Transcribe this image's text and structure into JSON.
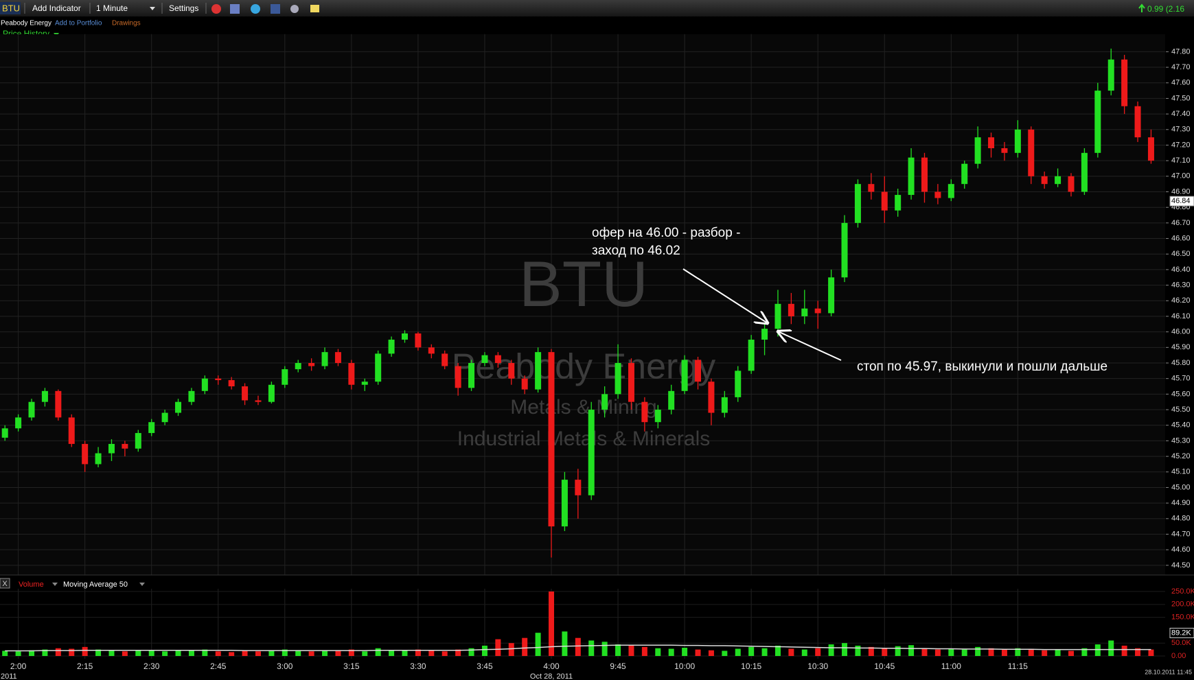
{
  "toolbar": {
    "symbol": "BTU",
    "add_indicator": "Add Indicator",
    "interval": "1 Minute",
    "settings": "Settings",
    "change": "0.99 (2.16",
    "company": "Peabody Energy",
    "add_to_portfolio": "Add to Portfolio",
    "drawings": "Drawings",
    "price_history": "Price History"
  },
  "chart_data": {
    "type": "candlestick",
    "watermark": [
      "BTU",
      "Peabody Energy",
      "Metals & Mining",
      "Industrial Metals & Minerals"
    ],
    "categories": [
      null,
      "2:00",
      null,
      null,
      null,
      null,
      "2:15",
      null,
      null,
      null,
      null,
      "2:30",
      null,
      null,
      null,
      null,
      "2:45",
      null,
      null,
      null,
      null,
      "3:00",
      null,
      null,
      null,
      null,
      "3:15",
      null,
      null,
      null,
      null,
      "3:30",
      null,
      null,
      null,
      null,
      "3:45",
      null,
      null,
      null,
      null,
      "4:00",
      null,
      null,
      null,
      null,
      "9:45",
      null,
      null,
      null,
      null,
      "10:00",
      null,
      null,
      null,
      null,
      "10:15",
      null,
      null,
      null,
      null,
      "10:30",
      null,
      null,
      null,
      null,
      "10:45",
      null,
      null,
      null,
      null,
      "11:00",
      null,
      null,
      null,
      null,
      "11:15",
      null,
      null,
      null,
      null,
      null,
      null,
      null,
      null,
      null,
      null
    ],
    "year_label": "2011",
    "date_label": "Oct 28, 2011",
    "open": [
      45.32,
      45.38,
      45.45,
      45.55,
      45.62,
      45.45,
      45.28,
      45.15,
      45.22,
      45.28,
      45.25,
      45.35,
      45.42,
      45.48,
      45.55,
      45.62,
      45.7,
      45.69,
      45.65,
      45.56,
      45.55,
      45.66,
      45.76,
      45.8,
      45.78,
      45.87,
      45.8,
      45.66,
      45.68,
      45.86,
      45.95,
      45.99,
      45.9,
      45.86,
      45.78,
      45.64,
      45.8,
      45.85,
      45.8,
      45.7,
      45.63,
      45.87,
      44.75,
      45.05,
      44.95,
      45.5,
      45.6,
      45.8,
      45.55,
      45.42,
      45.5,
      45.62,
      45.82,
      45.68,
      45.48,
      45.58,
      45.75,
      45.95,
      46.02,
      46.18,
      46.1,
      46.15,
      46.12,
      46.35,
      46.7,
      46.95,
      46.9,
      46.78,
      46.88,
      47.12,
      46.9,
      46.86,
      46.95,
      47.08,
      47.25,
      47.18,
      47.15,
      47.3,
      47.0,
      46.95,
      47.0,
      46.9,
      47.15,
      47.55,
      47.75,
      47.45,
      47.25
    ],
    "high": [
      45.4,
      45.47,
      45.57,
      45.64,
      45.63,
      45.47,
      45.3,
      45.26,
      45.31,
      45.3,
      45.37,
      45.44,
      45.5,
      45.57,
      45.64,
      45.72,
      45.72,
      45.71,
      45.67,
      45.59,
      45.68,
      45.78,
      45.82,
      45.83,
      45.9,
      45.89,
      45.82,
      45.7,
      45.88,
      45.97,
      46.01,
      46.0,
      45.92,
      45.88,
      45.8,
      45.82,
      45.87,
      45.87,
      45.82,
      45.72,
      45.9,
      45.89,
      45.1,
      45.12,
      45.55,
      45.65,
      45.92,
      45.83,
      45.58,
      45.53,
      45.66,
      45.85,
      45.84,
      45.7,
      45.62,
      45.78,
      45.98,
      46.06,
      46.27,
      46.25,
      46.27,
      46.2,
      46.4,
      46.75,
      46.98,
      47.02,
      47.0,
      46.92,
      47.18,
      47.15,
      46.95,
      46.98,
      47.1,
      47.32,
      47.28,
      47.22,
      47.36,
      47.32,
      47.03,
      47.05,
      47.02,
      47.18,
      47.6,
      47.82,
      47.78,
      47.48,
      47.3
    ],
    "low": [
      45.3,
      45.36,
      45.43,
      45.52,
      45.43,
      45.26,
      45.1,
      45.13,
      45.17,
      45.2,
      45.23,
      45.33,
      45.4,
      45.46,
      45.53,
      45.6,
      45.66,
      45.63,
      45.53,
      45.53,
      45.54,
      45.64,
      45.74,
      45.75,
      45.76,
      45.78,
      45.63,
      45.62,
      45.66,
      45.84,
      45.93,
      45.88,
      45.83,
      45.76,
      45.59,
      45.62,
      45.78,
      45.77,
      45.66,
      45.6,
      45.61,
      44.55,
      44.72,
      44.8,
      44.92,
      45.45,
      45.57,
      45.5,
      45.36,
      45.38,
      45.47,
      45.6,
      45.63,
      45.4,
      45.45,
      45.55,
      45.73,
      45.85,
      45.97,
      46.05,
      46.05,
      46.02,
      46.1,
      46.32,
      46.67,
      46.85,
      46.7,
      46.74,
      46.85,
      46.83,
      46.82,
      46.84,
      46.92,
      47.05,
      47.12,
      47.1,
      47.12,
      46.95,
      46.92,
      46.93,
      46.87,
      46.88,
      47.12,
      47.52,
      47.4,
      47.22,
      47.08
    ],
    "close": [
      45.38,
      45.45,
      45.55,
      45.62,
      45.45,
      45.28,
      45.15,
      45.22,
      45.28,
      45.25,
      45.35,
      45.42,
      45.48,
      45.55,
      45.62,
      45.7,
      45.69,
      45.65,
      45.56,
      45.55,
      45.66,
      45.76,
      45.8,
      45.78,
      45.87,
      45.8,
      45.66,
      45.68,
      45.86,
      45.95,
      45.99,
      45.9,
      45.86,
      45.78,
      45.64,
      45.8,
      45.85,
      45.8,
      45.7,
      45.63,
      45.87,
      44.75,
      45.05,
      44.95,
      45.5,
      45.6,
      45.8,
      45.55,
      45.42,
      45.5,
      45.62,
      45.82,
      45.68,
      45.48,
      45.58,
      45.75,
      45.95,
      46.02,
      46.18,
      46.1,
      46.15,
      46.12,
      46.35,
      46.7,
      46.95,
      46.9,
      46.78,
      46.88,
      47.12,
      46.9,
      46.86,
      46.95,
      47.08,
      47.25,
      47.18,
      47.15,
      47.3,
      47.0,
      46.95,
      47.0,
      46.9,
      47.15,
      47.55,
      47.75,
      47.45,
      47.25,
      47.1
    ],
    "up_color": "#22e022",
    "down_color": "#ee1a1a",
    "ylim": [
      44.45,
      47.9
    ],
    "yticks": [
      {
        "value": 44.5,
        "label": "44.50"
      },
      {
        "value": 44.6,
        "label": "44.60"
      },
      {
        "value": 44.7,
        "label": "44.70"
      },
      {
        "value": 44.8,
        "label": "44.80"
      },
      {
        "value": 44.9,
        "label": "44.90"
      },
      {
        "value": 45.0,
        "label": "45.00"
      },
      {
        "value": 45.1,
        "label": "45.10"
      },
      {
        "value": 45.2,
        "label": "45.20"
      },
      {
        "value": 45.3,
        "label": "45.30"
      },
      {
        "value": 45.4,
        "label": "45.40"
      },
      {
        "value": 45.5,
        "label": "45.50"
      },
      {
        "value": 45.6,
        "label": "45.60"
      },
      {
        "value": 45.7,
        "label": "45.70"
      },
      {
        "value": 45.8,
        "label": "45.80"
      },
      {
        "value": 45.9,
        "label": "45.90"
      },
      {
        "value": 46.0,
        "label": "46.00"
      },
      {
        "value": 46.1,
        "label": "46.10"
      },
      {
        "value": 46.2,
        "label": "46.20"
      },
      {
        "value": 46.3,
        "label": "46.30"
      },
      {
        "value": 46.4,
        "label": "46.40"
      },
      {
        "value": 46.5,
        "label": "46.50"
      },
      {
        "value": 46.6,
        "label": "46.60"
      },
      {
        "value": 46.7,
        "label": "46.70"
      },
      {
        "value": 46.8,
        "label": "46.80"
      },
      {
        "value": 46.9,
        "label": "46.90"
      },
      {
        "value": 47.0,
        "label": "47.00"
      },
      {
        "value": 47.1,
        "label": "47.10"
      },
      {
        "value": 47.2,
        "label": "47.20"
      },
      {
        "value": 47.3,
        "label": "47.30"
      },
      {
        "value": 47.4,
        "label": "47.40"
      },
      {
        "value": 47.5,
        "label": "47.50"
      },
      {
        "value": 47.6,
        "label": "47.60"
      },
      {
        "value": 47.7,
        "label": "47.70"
      },
      {
        "value": 47.8,
        "label": "47.80"
      }
    ],
    "last_price": 46.84,
    "grid": true,
    "annotations": [
      "офер на 46.00 - разбор -",
      "заход по 46.02",
      "стоп по 45.97, выкинули и пошли дальше"
    ],
    "timestamp": "28.10.2011 11:45",
    "volume": {
      "type": "bar",
      "title": "Volume",
      "indicator": "Moving Average 50",
      "close_label": "X",
      "values": [
        20,
        18,
        22,
        25,
        30,
        28,
        35,
        25,
        20,
        18,
        22,
        20,
        18,
        22,
        20,
        25,
        18,
        15,
        20,
        18,
        22,
        25,
        20,
        18,
        22,
        20,
        25,
        18,
        30,
        22,
        20,
        25,
        20,
        18,
        25,
        30,
        40,
        65,
        50,
        70,
        90,
        250,
        95,
        70,
        60,
        55,
        45,
        40,
        35,
        30,
        28,
        32,
        25,
        22,
        20,
        28,
        35,
        30,
        40,
        28,
        25,
        30,
        45,
        50,
        40,
        35,
        30,
        38,
        42,
        30,
        25,
        28,
        25,
        35,
        30,
        25,
        30,
        28,
        22,
        25,
        20,
        30,
        45,
        60,
        40,
        30,
        25
      ],
      "moving_average": [
        20,
        20,
        20,
        21,
        21,
        21,
        22,
        22,
        22,
        22,
        22,
        22,
        22,
        22,
        22,
        22,
        22,
        22,
        21,
        21,
        21,
        21,
        21,
        21,
        21,
        21,
        21,
        21,
        22,
        22,
        22,
        22,
        22,
        22,
        22,
        23,
        25,
        26,
        28,
        31,
        33,
        36,
        38,
        39,
        40,
        41,
        42,
        42,
        42,
        42,
        42,
        41,
        41,
        40,
        40,
        39,
        38,
        37,
        36,
        35,
        34,
        33,
        32,
        32,
        31,
        31,
        30,
        30,
        29,
        29,
        28,
        28,
        27,
        27,
        27,
        26,
        26,
        26,
        25,
        25,
        25,
        25,
        25,
        25,
        25,
        25,
        25
      ],
      "ma_color": "#dddddd",
      "ylim": [
        0,
        270
      ],
      "yticks": [
        {
          "value": 0,
          "label": "0.00"
        },
        {
          "value": 50,
          "label": "50.0K"
        },
        {
          "value": 150,
          "label": "150.0K"
        },
        {
          "value": 200,
          "label": "200.0K"
        },
        {
          "value": 250,
          "label": "250.0K"
        }
      ],
      "last_value": {
        "value": 89.2,
        "label": "89.2K"
      }
    }
  }
}
